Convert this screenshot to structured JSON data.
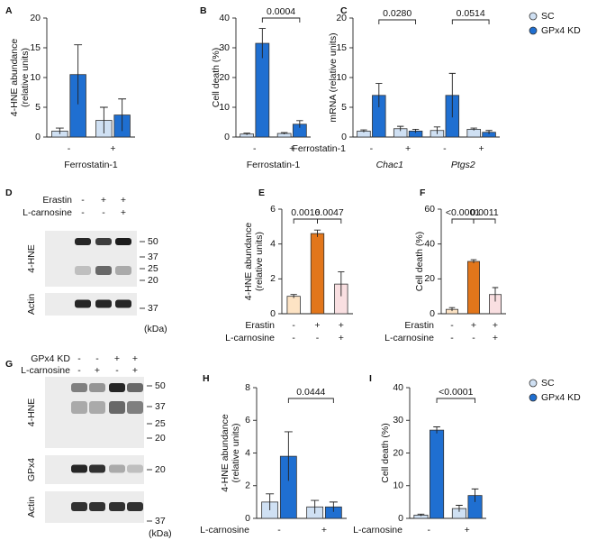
{
  "chart_data": [
    {
      "type": "bar",
      "panel": "A",
      "ylabel": [
        "4-HNE abundance",
        "(relative units)"
      ],
      "ylim": [
        0,
        20
      ],
      "yticks": [
        0,
        5,
        10,
        15,
        20
      ],
      "categories": [
        "-",
        "+"
      ],
      "xlabel": "Ferrostatin-1",
      "series": [
        {
          "color": "#cfe0f3",
          "values": [
            1,
            2.8
          ],
          "errors": [
            0.5,
            2.2
          ]
        },
        {
          "color": "#1f6fd1",
          "values": [
            10.5,
            3.7
          ],
          "errors": [
            5,
            2.7
          ]
        }
      ]
    },
    {
      "type": "bar",
      "panel": "B",
      "ylabel": [
        "Cell death (%)"
      ],
      "ylim": [
        0,
        40
      ],
      "yticks": [
        0,
        10,
        20,
        30,
        40
      ],
      "categories": [
        "-",
        "+"
      ],
      "xlabel": "Ferrostatin-1",
      "annotations": [
        "0.0004"
      ],
      "series": [
        {
          "color": "#cfe0f3",
          "values": [
            1,
            1.2
          ],
          "errors": [
            0.3,
            0.3
          ]
        },
        {
          "color": "#1f6fd1",
          "values": [
            31.5,
            4.3
          ],
          "errors": [
            5,
            1.2
          ]
        }
      ]
    },
    {
      "type": "bar",
      "panel": "C",
      "ylabel": [
        "mRNA (relative units)"
      ],
      "ylim": [
        0,
        20
      ],
      "yticks": [
        0,
        5,
        10,
        15,
        20
      ],
      "categories": [
        "-",
        "+",
        "-",
        "+"
      ],
      "groups": [
        "Chac1",
        "Ptgs2"
      ],
      "xlabel": "Ferrostatin-1",
      "annotations": [
        "0.0280",
        "0.0514"
      ],
      "legend": true,
      "series": [
        {
          "name": "SC",
          "color": "#cfe0f3",
          "values": [
            1,
            1.4,
            1.1,
            1.3
          ],
          "errors": [
            0.2,
            0.4,
            0.6,
            0.2
          ]
        },
        {
          "name": "GPx4 KD",
          "color": "#1f6fd1",
          "values": [
            7,
            1,
            7,
            0.8
          ],
          "errors": [
            2,
            0.3,
            3.7,
            0.3
          ]
        }
      ]
    },
    {
      "type": "blot",
      "panel": "D",
      "conditions": [
        {
          "label": "Erastin",
          "signs": [
            "-",
            "+",
            "+"
          ]
        },
        {
          "label": "L-carnosine",
          "signs": [
            "-",
            "-",
            "+"
          ]
        }
      ],
      "rows": [
        {
          "label": "4-HNE",
          "markers": [
            50,
            37,
            25,
            20
          ]
        },
        {
          "label": "Actin",
          "markers": [
            37
          ]
        }
      ],
      "unit": "(kDa)"
    },
    {
      "type": "bar",
      "panel": "E",
      "ylabel": [
        "4-HNE abundance",
        "(relative units)"
      ],
      "ylim": [
        0,
        6
      ],
      "yticks": [
        0,
        2,
        4,
        6
      ],
      "values": [
        1,
        4.6,
        1.7
      ],
      "errors": [
        0.1,
        0.2,
        0.7
      ],
      "colors": [
        "#fde3c4",
        "#e2761b",
        "#f9dfe1"
      ],
      "conditions": [
        {
          "label": "Erastin",
          "signs": [
            "-",
            "+",
            "+"
          ]
        },
        {
          "label": "L-carnosine",
          "signs": [
            "-",
            "-",
            "+"
          ]
        }
      ],
      "annotations": [
        "0.0016",
        "0.0047"
      ]
    },
    {
      "type": "bar",
      "panel": "F",
      "ylabel": [
        "Cell death (%)"
      ],
      "ylim": [
        0,
        60
      ],
      "yticks": [
        0,
        20,
        40,
        60
      ],
      "values": [
        2.5,
        30,
        11
      ],
      "errors": [
        1,
        1,
        4
      ],
      "colors": [
        "#fde3c4",
        "#e2761b",
        "#f9dfe1"
      ],
      "conditions": [
        {
          "label": "Erastin",
          "signs": [
            "-",
            "+",
            "+"
          ]
        },
        {
          "label": "L-carnosine",
          "signs": [
            "-",
            "-",
            "+"
          ]
        }
      ],
      "annotations": [
        "<0.0001",
        "0.0011"
      ]
    },
    {
      "type": "blot",
      "panel": "G",
      "conditions": [
        {
          "label": "GPx4 KD",
          "signs": [
            "-",
            "-",
            "+",
            "+"
          ]
        },
        {
          "label": "L-carnosine",
          "signs": [
            "-",
            "+",
            "-",
            "+"
          ]
        }
      ],
      "rows": [
        {
          "label": "4-HNE",
          "markers": [
            50,
            37,
            25,
            20
          ]
        },
        {
          "label": "GPx4",
          "markers": [
            20
          ]
        },
        {
          "label": "Actin",
          "markers": [
            37
          ]
        }
      ],
      "unit": "(kDa)"
    },
    {
      "type": "bar",
      "panel": "H",
      "ylabel": [
        "4-HNE abundance",
        "(relative units)"
      ],
      "ylim": [
        0,
        8
      ],
      "yticks": [
        0,
        2,
        4,
        6,
        8
      ],
      "categories": [
        "-",
        "+"
      ],
      "xlabel": "L-carnosine",
      "annotations": [
        "0.0444"
      ],
      "series": [
        {
          "color": "#cfe0f3",
          "values": [
            1,
            0.7
          ],
          "errors": [
            0.5,
            0.4
          ]
        },
        {
          "color": "#1f6fd1",
          "values": [
            3.8,
            0.7
          ],
          "errors": [
            1.5,
            0.3
          ]
        }
      ]
    },
    {
      "type": "bar",
      "panel": "I",
      "ylabel": [
        "Cell death (%)"
      ],
      "ylim": [
        0,
        40
      ],
      "yticks": [
        0,
        10,
        20,
        30,
        40
      ],
      "categories": [
        "-",
        "+"
      ],
      "xlabel": "L-carnosine",
      "annotations": [
        "<0.0001"
      ],
      "legend": true,
      "series": [
        {
          "name": "SC",
          "color": "#cfe0f3",
          "values": [
            1,
            3
          ],
          "errors": [
            0.3,
            1
          ]
        },
        {
          "name": "GPx4 KD",
          "color": "#1f6fd1",
          "values": [
            27,
            7
          ],
          "errors": [
            1,
            2
          ]
        }
      ]
    }
  ]
}
